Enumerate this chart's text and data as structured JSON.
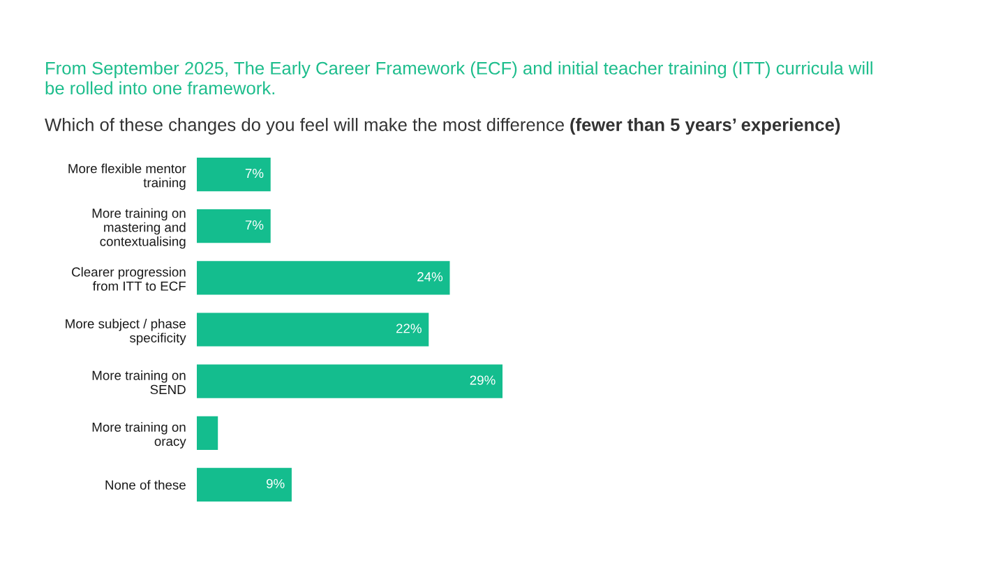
{
  "chart_data": {
    "type": "bar",
    "orientation": "horizontal",
    "title": "From September 2025, The Early Career Framework (ECF) and initial teacher training (ITT) curricula will\nbe rolled into one framework.",
    "subtitle": "Which of these changes do you feel will make the most difference",
    "annotations": [
      "(fewer than 5 years’ experience)"
    ],
    "categories": [
      "More flexible mentor\ntraining",
      "More training on\nmastering and\ncontextualising",
      "Clearer progression\nfrom ITT to ECF",
      "More subject / phase\nspecificity",
      "More training on\nSEND",
      "More training on\noracy",
      "None of these"
    ],
    "values": [
      7,
      7,
      24,
      22,
      29,
      2,
      9
    ],
    "value_labels": [
      "7%",
      "7%",
      "24%",
      "22%",
      "29%",
      null,
      "9%"
    ],
    "color": "#14bd8e",
    "tick_labels": "y"
  }
}
